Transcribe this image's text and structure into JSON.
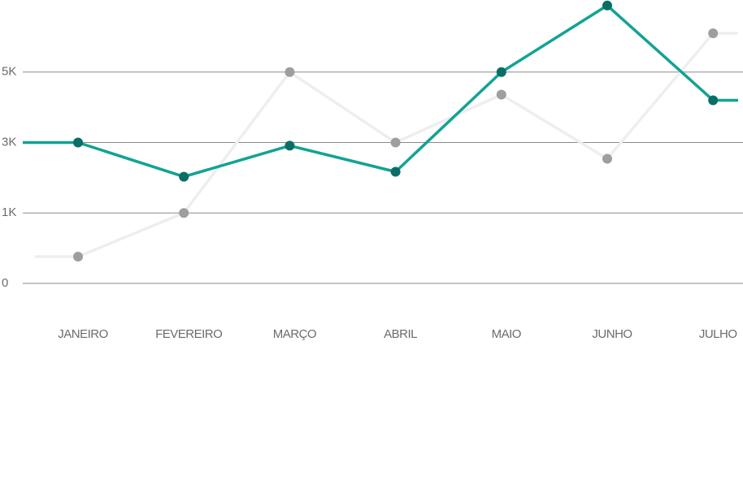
{
  "chart_data": {
    "type": "line",
    "categories": [
      "JANEIRO",
      "FEVEREIRO",
      "MARÇO",
      "ABRIL",
      "MAIO",
      "JUNHO",
      "JULHO"
    ],
    "series": [
      {
        "color": "#eeeeee",
        "point_color": "#9e9e9e",
        "values": [
          380,
          1000,
          5000,
          3000,
          4360,
          2540,
          6100
        ]
      },
      {
        "color": "#12a394",
        "point_color": "#0b6e66",
        "values": [
          3000,
          2030,
          2910,
          2170,
          5000,
          6890,
          4200
        ]
      }
    ],
    "ylim": [
      0,
      7000
    ],
    "yticks": [
      0,
      {
        "value": 1000,
        "label": "1K"
      },
      {
        "value": 3000,
        "label": "3K"
      },
      {
        "value": 5000,
        "label": "5K"
      }
    ],
    "grid": true
  }
}
